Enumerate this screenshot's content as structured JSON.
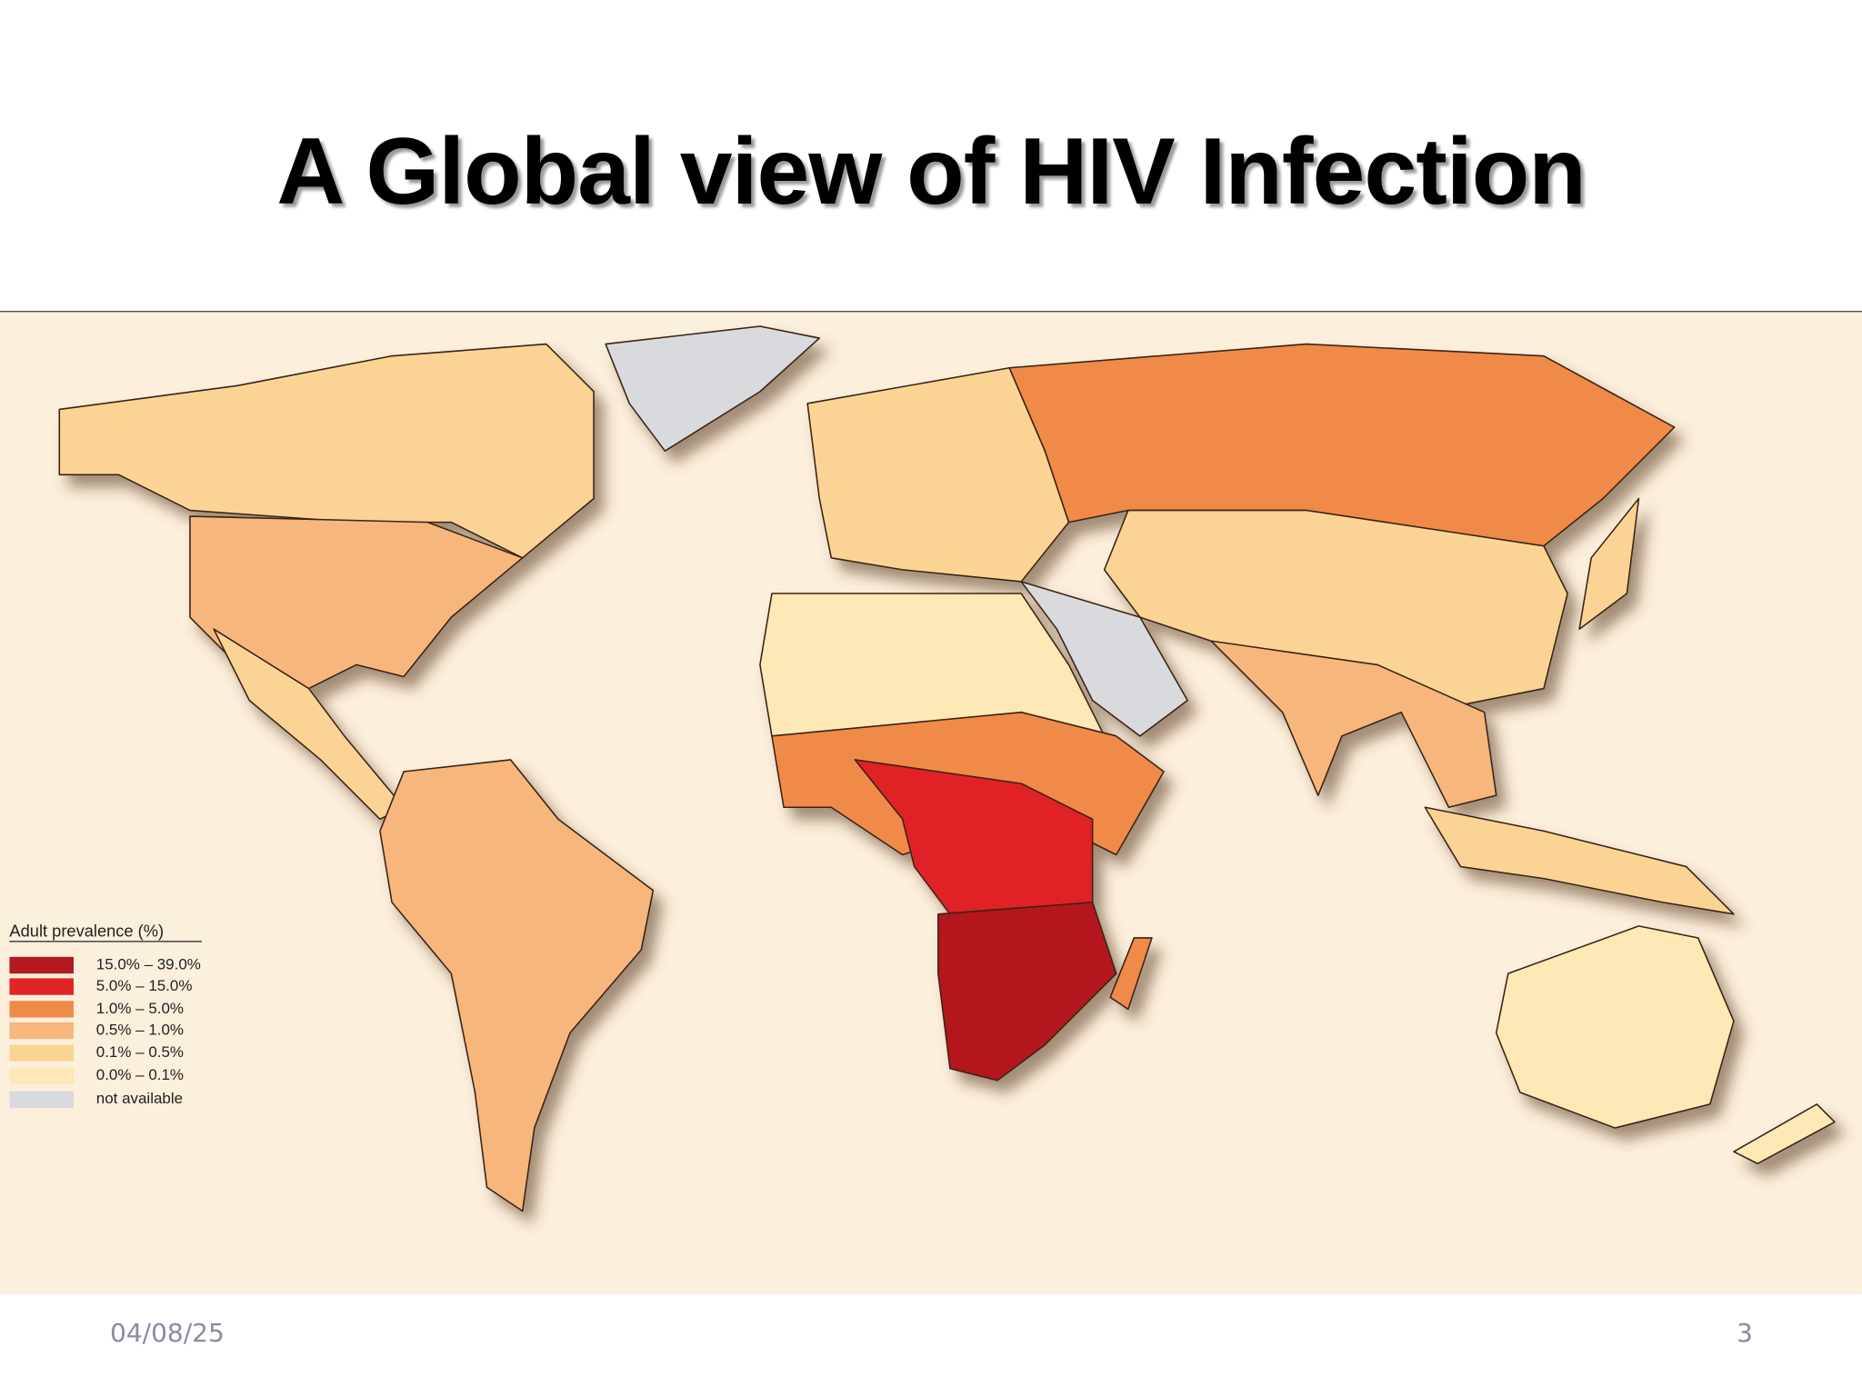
{
  "slide": {
    "title": "A Global view of HIV Infection",
    "date": "04/08/25",
    "page_number": "3"
  },
  "map": {
    "legend": {
      "title": "Adult prevalence (%)",
      "items": [
        {
          "label": "15.0% – 39.0%",
          "color": "#b3191e"
        },
        {
          "label": "5.0% – 15.0%",
          "color": "#e02428"
        },
        {
          "label": "1.0% – 5.0%",
          "color": "#f08a48"
        },
        {
          "label": "0.5% – 1.0%",
          "color": "#f6b67c"
        },
        {
          "label": "0.1% – 0.5%",
          "color": "#fbd495"
        },
        {
          "label": "0.0% – 0.1%",
          "color": "#fde8b6"
        },
        {
          "label": "not available",
          "color": "#d9dadd"
        }
      ]
    }
  }
}
